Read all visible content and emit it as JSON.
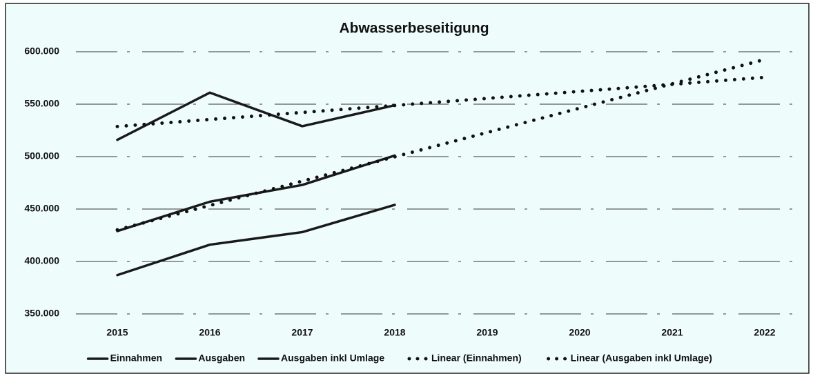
{
  "chart_data": {
    "type": "line",
    "title": "Abwasserbeseitigung",
    "categories": [
      "2015",
      "2016",
      "2017",
      "2018",
      "2019",
      "2020",
      "2021",
      "2022"
    ],
    "series": [
      {
        "name": "Einnahmen",
        "color": "#1a1a1a",
        "style": "solid",
        "values": [
          516000,
          561000,
          529000,
          549000,
          null,
          null,
          null,
          null
        ]
      },
      {
        "name": "Ausgaben",
        "color": "#1a1a1a",
        "style": "solid",
        "values": [
          387000,
          416000,
          428000,
          454000,
          null,
          null,
          null,
          null
        ]
      },
      {
        "name": "Ausgaben inkl Umlage",
        "color": "#1a1a1a",
        "style": "solid",
        "values": [
          429000,
          457000,
          473000,
          501000,
          null,
          null,
          null,
          null
        ]
      },
      {
        "name": "Linear (Einnahmen)",
        "color": "#111111",
        "style": "dotted",
        "values": [
          528700,
          535400,
          542100,
          548800,
          555500,
          562200,
          568900,
          575600
        ]
      },
      {
        "name": "Linear (Ausgaben inkl Umlage)",
        "color": "#111111",
        "style": "dotted",
        "values": [
          430200,
          453400,
          476600,
          499800,
          523000,
          546200,
          569400,
          592600
        ]
      }
    ],
    "ylim": [
      350000,
      600000
    ],
    "yticks": [
      {
        "value": 350000,
        "label": "350.000"
      },
      {
        "value": 400000,
        "label": "400.000"
      },
      {
        "value": 450000,
        "label": "450.000"
      },
      {
        "value": 500000,
        "label": "500.000"
      },
      {
        "value": 550000,
        "label": "550.000"
      },
      {
        "value": 600000,
        "label": "600.000"
      }
    ],
    "grid": true,
    "legend": "bottom",
    "background": "#effcfc"
  }
}
